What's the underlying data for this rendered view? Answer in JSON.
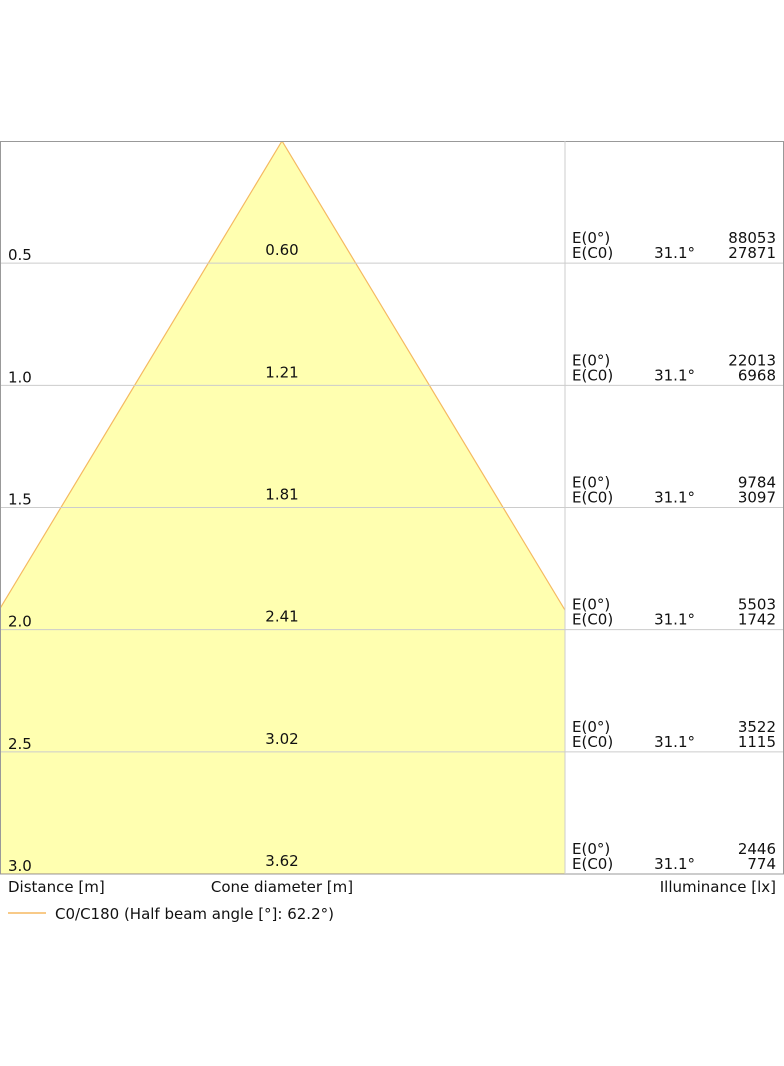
{
  "chart_data": {
    "type": "cone",
    "yticks": [
      0.5,
      {
        "value": 1,
        "label": "1.0"
      },
      1.5,
      {
        "value": 2,
        "label": "2.0"
      },
      2.5,
      {
        "value": 3,
        "label": "3.0"
      }
    ],
    "ylim": [
      0,
      3
    ],
    "diameters": [
      0.6,
      1.21,
      1.81,
      2.41,
      3.02,
      3.62
    ],
    "diameter_labels": [
      "0.60",
      "1.21",
      "1.81",
      "2.41",
      "3.02",
      "3.62"
    ],
    "illuminance_center": [
      88053,
      22013,
      9784,
      5503,
      3522,
      2446
    ],
    "illuminance_c0": [
      27871,
      6968,
      3097,
      1742,
      1115,
      774
    ],
    "row_labels": [
      "E(0°)",
      "E(C0)"
    ],
    "half_angle": 31.1,
    "angle_label": "31.1°",
    "x_label": "Distance [m]",
    "cone_label": "Cone diameter [m]",
    "illuminance_label": "Illuminance [lx]",
    "legend": "C0/C180 (Half beam angle [°]: 62.2°)",
    "line_color": "#f5b961",
    "fill_color": "#ffffb0"
  }
}
